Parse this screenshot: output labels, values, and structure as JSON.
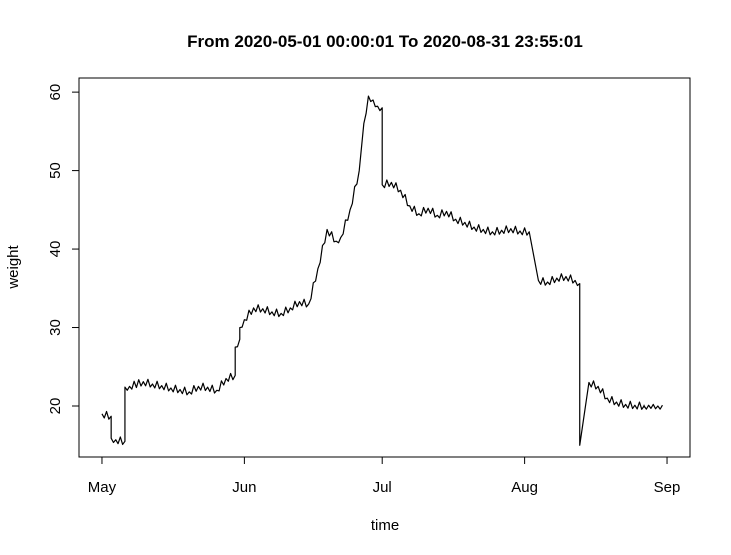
{
  "chart_data": {
    "type": "line",
    "title": "From 2020-05-01 00:00:01 To 2020-08-31 23:55:01",
    "xlabel": "time",
    "ylabel": "weight",
    "x_ticks": [
      {
        "date": "2020-05-01",
        "label": "May"
      },
      {
        "date": "2020-06-01",
        "label": "Jun"
      },
      {
        "date": "2020-07-01",
        "label": "Jul"
      },
      {
        "date": "2020-08-01",
        "label": "Aug"
      },
      {
        "date": "2020-09-01",
        "label": "Sep"
      }
    ],
    "y_ticks": [
      20,
      30,
      40,
      50,
      60
    ],
    "xlim": [
      "2020-04-26",
      "2020-09-06"
    ],
    "ylim": [
      13.5,
      61.8
    ],
    "grid": false,
    "legend": "none",
    "line_color": "#000000",
    "series": [
      {
        "x": [
          "2020-05-01",
          "2020-05-03",
          "2020-05-03",
          "2020-05-04",
          "2020-05-06",
          "2020-05-06",
          "2020-05-07",
          "2020-05-10",
          "2020-05-12",
          "2020-05-14",
          "2020-05-16",
          "2020-05-18",
          "2020-05-20",
          "2020-05-22",
          "2020-05-24",
          "2020-05-26",
          "2020-05-28",
          "2020-05-30",
          "2020-05-30",
          "2020-05-31",
          "2020-05-31",
          "2020-06-01",
          "2020-06-03",
          "2020-06-05",
          "2020-06-07",
          "2020-06-09",
          "2020-06-11",
          "2020-06-13",
          "2020-06-15",
          "2020-06-17",
          "2020-06-19",
          "2020-06-21",
          "2020-06-22",
          "2020-06-24",
          "2020-06-26",
          "2020-06-27",
          "2020-06-28",
          "2020-06-29",
          "2020-06-30",
          "2020-07-01",
          "2020-07-01",
          "2020-07-03",
          "2020-07-05",
          "2020-07-07",
          "2020-07-09",
          "2020-07-11",
          "2020-07-13",
          "2020-07-15",
          "2020-07-17",
          "2020-07-19",
          "2020-07-21",
          "2020-07-23",
          "2020-07-25",
          "2020-07-27",
          "2020-07-29",
          "2020-07-31",
          "2020-08-02",
          "2020-08-04",
          "2020-08-06",
          "2020-08-08",
          "2020-08-10",
          "2020-08-12",
          "2020-08-13",
          "2020-08-13",
          "2020-08-15",
          "2020-08-17",
          "2020-08-19",
          "2020-08-21",
          "2020-08-23",
          "2020-08-25",
          "2020-08-27",
          "2020-08-27",
          "2020-08-27",
          "2020-08-28",
          "2020-08-29",
          "2020-08-30",
          "2020-08-31"
        ],
        "values": [
          19.0,
          18.7,
          15.9,
          15.7,
          15.5,
          22.4,
          22.5,
          23.1,
          22.8,
          22.6,
          22.3,
          22.1,
          21.8,
          22.5,
          22.4,
          22.0,
          23.5,
          23.9,
          27.5,
          28.5,
          30.0,
          31.0,
          32.5,
          32.4,
          32.0,
          31.8,
          32.5,
          33.3,
          33.0,
          37.5,
          42.5,
          41.0,
          41.5,
          45.0,
          50.0,
          56.0,
          59.5,
          59.0,
          58.2,
          58.0,
          48.2,
          48.5,
          47.5,
          45.5,
          44.5,
          45.2,
          44.3,
          44.8,
          43.8,
          43.4,
          42.8,
          42.5,
          42.2,
          42.4,
          42.6,
          42.3,
          42.2,
          36.0,
          35.8,
          36.3,
          36.5,
          36.0,
          35.6,
          15.0,
          23.0,
          22.5,
          21.0,
          20.5,
          20.2,
          20.1,
          20.0,
          20.1,
          20.0,
          20.1,
          20.2,
          20.0,
          20.1
        ]
      }
    ]
  }
}
